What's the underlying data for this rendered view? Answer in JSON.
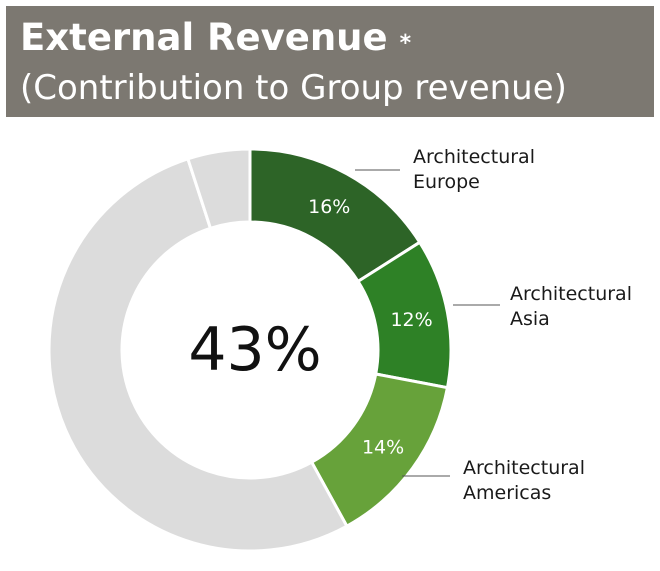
{
  "header": {
    "title": "External Revenue",
    "title_mark": "*",
    "subtitle": "(Contribution to Group revenue)"
  },
  "chart_data": {
    "type": "pie",
    "subtype": "donut",
    "title": "External Revenue *",
    "subtitle": "(Contribution to Group revenue)",
    "center_label": "43%",
    "slices": [
      {
        "name": "Architectural Europe",
        "label_lines": [
          "Architectural",
          "Europe"
        ],
        "value": 16,
        "display": "16%",
        "color": "#2d6427"
      },
      {
        "name": "Architectural Asia",
        "label_lines": [
          "Architectural",
          "Asia"
        ],
        "value": 12,
        "display": "12%",
        "color": "#2e8126"
      },
      {
        "name": "Architectural Americas",
        "label_lines": [
          "Architectural",
          "Americas"
        ],
        "value": 14,
        "display": "14%",
        "color": "#67a23a"
      },
      {
        "name": "",
        "label_lines": [],
        "value": 53,
        "display": "",
        "color": "#dcdcdc"
      },
      {
        "name": "",
        "label_lines": [],
        "value": 5,
        "display": "",
        "color": "#dcdcdc"
      }
    ],
    "start_angle_deg": 0,
    "direction": "clockwise",
    "legend": "none",
    "colors": {
      "separator": "#ffffff",
      "callout_line": "#555555"
    }
  }
}
